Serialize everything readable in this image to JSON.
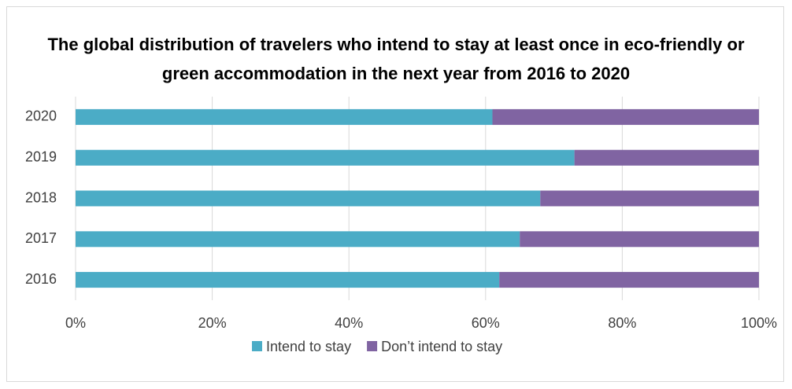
{
  "chart_data": {
    "type": "stacked_barh",
    "title": "The global distribution of travelers who intend to stay at least once in eco-friendly or green accommodation in the next year from 2016 to 2020",
    "categories": [
      "2016",
      "2017",
      "2018",
      "2019",
      "2020"
    ],
    "series": [
      {
        "name": "Intend to stay",
        "color": "#4bacc6",
        "values": [
          62,
          65,
          68,
          73,
          61
        ]
      },
      {
        "name": "Don’t intend to stay",
        "color": "#8064a2",
        "values": [
          38,
          35,
          32,
          27,
          39
        ]
      }
    ],
    "xlim": [
      0,
      100
    ],
    "xticks": [
      {
        "value": 0,
        "label": "0%"
      },
      {
        "value": 20,
        "label": "20%"
      },
      {
        "value": 40,
        "label": "40%"
      },
      {
        "value": 60,
        "label": "60%"
      },
      {
        "value": 80,
        "label": "80%"
      },
      {
        "value": 100,
        "label": "100%"
      }
    ],
    "grid": true,
    "legend": "bottom"
  }
}
